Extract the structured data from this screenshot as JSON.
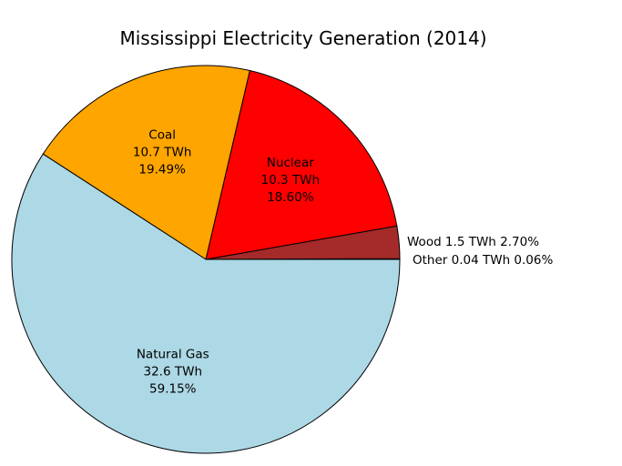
{
  "chart_data": {
    "type": "pie",
    "title": "Mississippi Electricity Generation (2014)",
    "start_angle_deg": 0,
    "direction": "counterclockwise",
    "slices": [
      {
        "name": "Other",
        "value": 0.04,
        "percent": 0.06,
        "color": "#000000",
        "label": "Other 0.04 TWh 0.06%",
        "outside": true
      },
      {
        "name": "Wood",
        "value": 1.5,
        "percent": 2.7,
        "color": "#a52a2a",
        "label": "Wood 1.5 TWh 2.70%",
        "outside": true
      },
      {
        "name": "Nuclear",
        "value": 10.3,
        "percent": 18.6,
        "color": "#ff0000",
        "lines": [
          "Nuclear",
          "10.3 TWh",
          "18.60%"
        ]
      },
      {
        "name": "Coal",
        "value": 10.7,
        "percent": 19.49,
        "color": "#ffa500",
        "lines": [
          "Coal",
          "10.7 TWh",
          "19.49%"
        ]
      },
      {
        "name": "Natural Gas",
        "value": 32.6,
        "percent": 59.15,
        "color": "#add8e6",
        "lines": [
          "Natural Gas",
          "32.6 TWh",
          "59.15%"
        ]
      }
    ]
  }
}
